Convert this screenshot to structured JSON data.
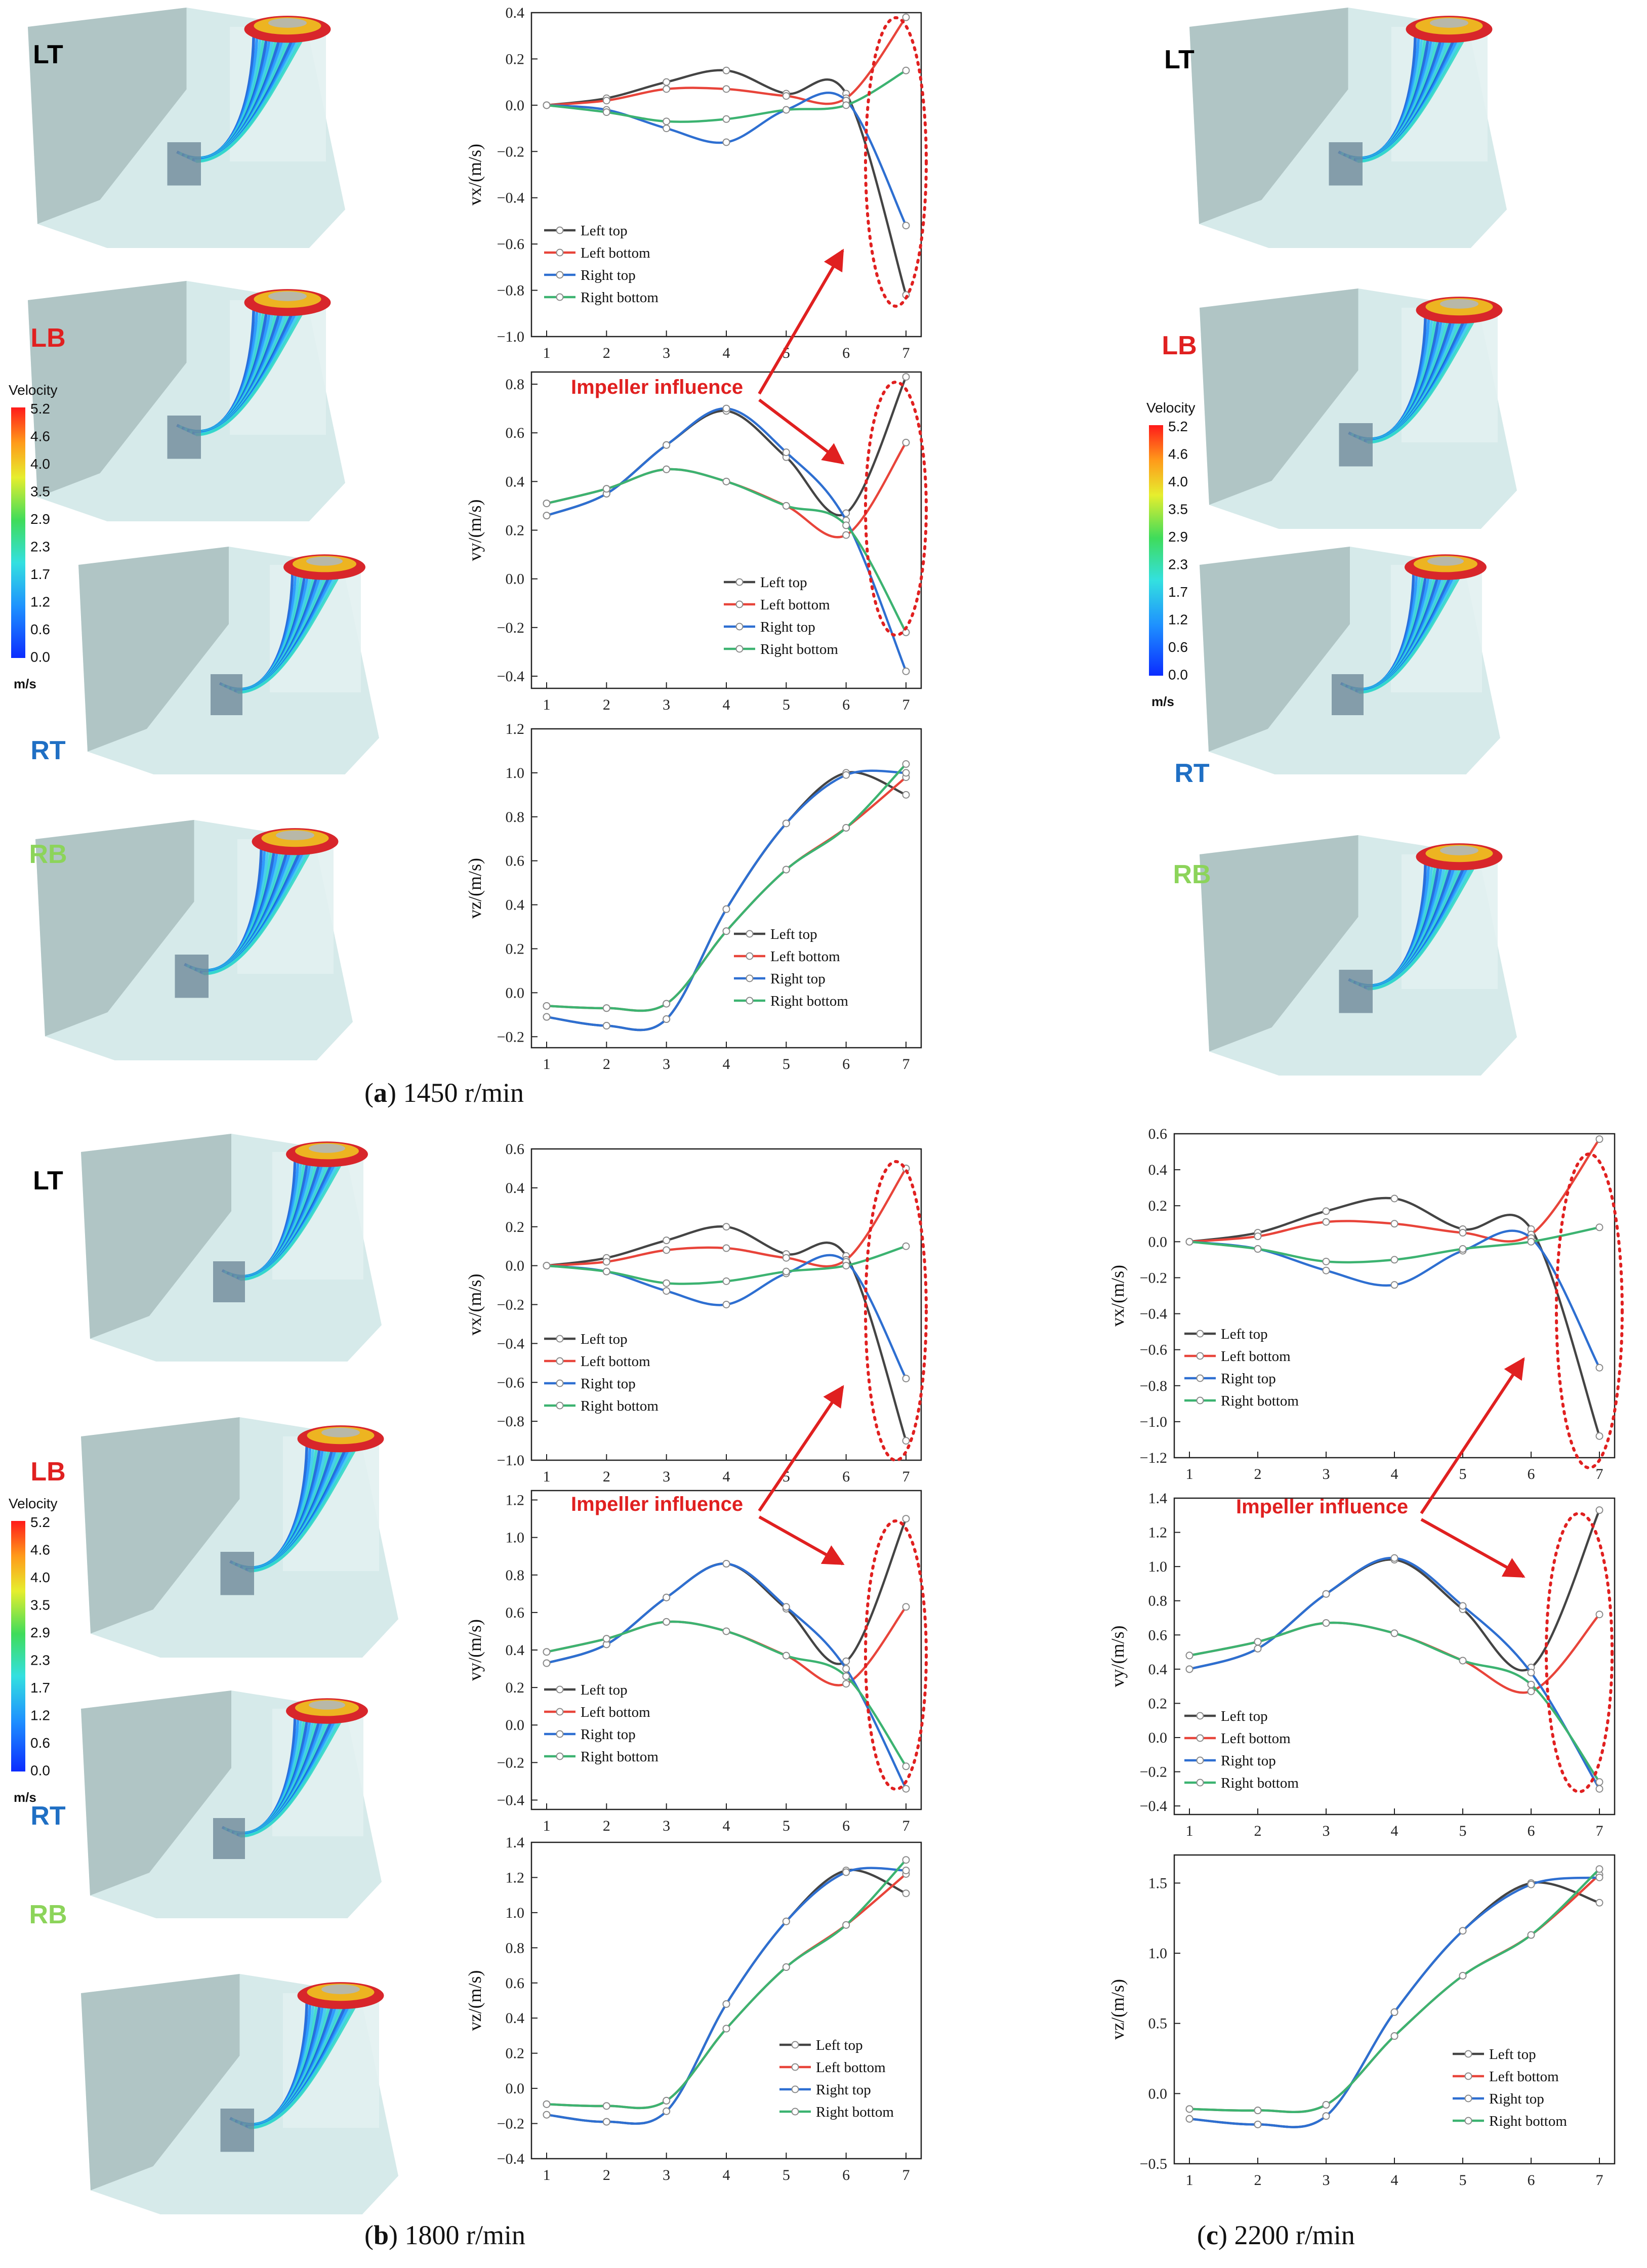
{
  "colors": {
    "series": [
      "#444444",
      "#e8443a",
      "#2e6fd1",
      "#3cb371"
    ],
    "annotation": "#e02020",
    "label_LT": "#000000",
    "label_LB": "#e02020",
    "label_RT": "#1f6fc4",
    "label_RB": "#8cd45a",
    "model_fill": "#cfe6e6",
    "model_dark": "#9fb5b5"
  },
  "labels": {
    "lt": "LT",
    "lb": "LB",
    "rt": "RT",
    "rb": "RB",
    "impeller": "Impeller influence",
    "velocity_title": "Velocity",
    "velocity_unit": "m/s",
    "velocity_ticks": [
      "5.2",
      "4.6",
      "4.0",
      "3.5",
      "2.9",
      "2.3",
      "1.7",
      "1.2",
      "0.6",
      "0.0"
    ]
  },
  "captions": {
    "a": {
      "letter": "a",
      "text": " 1450 r/min"
    },
    "b": {
      "letter": "b",
      "text": " 1800 r/min"
    },
    "c": {
      "letter": "c",
      "text": " 2200 r/min"
    }
  },
  "legend": [
    "Left top",
    "Left bottom",
    "Right top",
    "Right bottom"
  ],
  "chart_data": [
    {
      "id": "a_vx",
      "panel": "a",
      "type": "line",
      "ylabel": "vx/(m/s)",
      "xlabel": "",
      "x": [
        1,
        2,
        3,
        4,
        5,
        6,
        7
      ],
      "ylim": [
        -1.0,
        0.4
      ],
      "yticks": [
        -1.0,
        -0.8,
        -0.6,
        -0.4,
        -0.2,
        0.0,
        0.2,
        0.4
      ],
      "series": [
        {
          "name": "Left top",
          "values": [
            0.0,
            0.03,
            0.1,
            0.15,
            0.05,
            0.05,
            -0.82
          ]
        },
        {
          "name": "Left bottom",
          "values": [
            0.0,
            0.02,
            0.07,
            0.07,
            0.04,
            0.03,
            0.38
          ]
        },
        {
          "name": "Right top",
          "values": [
            0.0,
            -0.02,
            -0.1,
            -0.16,
            -0.02,
            0.02,
            -0.52
          ]
        },
        {
          "name": "Right bottom",
          "values": [
            0.0,
            -0.03,
            -0.07,
            -0.06,
            -0.02,
            0.0,
            0.15
          ]
        }
      ]
    },
    {
      "id": "a_vy",
      "panel": "a",
      "type": "line",
      "ylabel": "vy/(m/s)",
      "xlabel": "",
      "x": [
        1,
        2,
        3,
        4,
        5,
        6,
        7
      ],
      "ylim": [
        -0.45,
        0.85
      ],
      "yticks": [
        -0.4,
        -0.2,
        0.0,
        0.2,
        0.4,
        0.6,
        0.8
      ],
      "series": [
        {
          "name": "Left top",
          "values": [
            0.26,
            0.35,
            0.55,
            0.69,
            0.5,
            0.27,
            0.83
          ]
        },
        {
          "name": "Left bottom",
          "values": [
            0.31,
            0.37,
            0.45,
            0.4,
            0.3,
            0.18,
            0.56
          ]
        },
        {
          "name": "Right top",
          "values": [
            0.26,
            0.35,
            0.55,
            0.7,
            0.52,
            0.24,
            -0.38
          ]
        },
        {
          "name": "Right bottom",
          "values": [
            0.31,
            0.37,
            0.45,
            0.4,
            0.3,
            0.22,
            -0.22
          ]
        }
      ]
    },
    {
      "id": "a_vz",
      "panel": "a",
      "type": "line",
      "ylabel": "vz/(m/s)",
      "xlabel": "",
      "x": [
        1,
        2,
        3,
        4,
        5,
        6,
        7
      ],
      "ylim": [
        -0.25,
        1.2
      ],
      "yticks": [
        -0.2,
        0.0,
        0.2,
        0.4,
        0.6,
        0.8,
        1.0,
        1.2
      ],
      "series": [
        {
          "name": "Left top",
          "values": [
            -0.11,
            -0.15,
            -0.12,
            0.38,
            0.77,
            1.0,
            0.9
          ]
        },
        {
          "name": "Left bottom",
          "values": [
            -0.06,
            -0.07,
            -0.05,
            0.28,
            0.56,
            0.75,
            0.98
          ]
        },
        {
          "name": "Right top",
          "values": [
            -0.11,
            -0.15,
            -0.12,
            0.38,
            0.77,
            0.99,
            1.0
          ]
        },
        {
          "name": "Right bottom",
          "values": [
            -0.06,
            -0.07,
            -0.05,
            0.28,
            0.56,
            0.75,
            1.04
          ]
        }
      ]
    },
    {
      "id": "b_vx",
      "panel": "b",
      "type": "line",
      "ylabel": "vx/(m/s)",
      "xlabel": "",
      "x": [
        1,
        2,
        3,
        4,
        5,
        6,
        7
      ],
      "ylim": [
        -1.0,
        0.6
      ],
      "yticks": [
        -1.0,
        -0.8,
        -0.6,
        -0.4,
        -0.2,
        0.0,
        0.2,
        0.4,
        0.6
      ],
      "series": [
        {
          "name": "Left top",
          "values": [
            0.0,
            0.04,
            0.13,
            0.2,
            0.06,
            0.05,
            -0.9
          ]
        },
        {
          "name": "Left bottom",
          "values": [
            0.0,
            0.02,
            0.08,
            0.09,
            0.04,
            0.03,
            0.5
          ]
        },
        {
          "name": "Right top",
          "values": [
            0.0,
            -0.03,
            -0.13,
            -0.2,
            -0.04,
            0.02,
            -0.58
          ]
        },
        {
          "name": "Right bottom",
          "values": [
            0.0,
            -0.03,
            -0.09,
            -0.08,
            -0.03,
            0.0,
            0.1
          ]
        }
      ]
    },
    {
      "id": "b_vy",
      "panel": "b",
      "type": "line",
      "ylabel": "vy/(m/s)",
      "xlabel": "",
      "x": [
        1,
        2,
        3,
        4,
        5,
        6,
        7
      ],
      "ylim": [
        -0.45,
        1.25
      ],
      "yticks": [
        -0.4,
        -0.2,
        0.0,
        0.2,
        0.4,
        0.6,
        0.8,
        1.0,
        1.2
      ],
      "series": [
        {
          "name": "Left top",
          "values": [
            0.33,
            0.43,
            0.68,
            0.86,
            0.62,
            0.34,
            1.1
          ]
        },
        {
          "name": "Left bottom",
          "values": [
            0.39,
            0.46,
            0.55,
            0.5,
            0.37,
            0.22,
            0.63
          ]
        },
        {
          "name": "Right top",
          "values": [
            0.33,
            0.43,
            0.68,
            0.86,
            0.63,
            0.3,
            -0.34
          ]
        },
        {
          "name": "Right bottom",
          "values": [
            0.39,
            0.46,
            0.55,
            0.5,
            0.37,
            0.26,
            -0.22
          ]
        }
      ]
    },
    {
      "id": "b_vz",
      "panel": "b",
      "type": "line",
      "ylabel": "vz/(m/s)",
      "xlabel": "",
      "x": [
        1,
        2,
        3,
        4,
        5,
        6,
        7
      ],
      "ylim": [
        -0.4,
        1.4
      ],
      "yticks": [
        -0.4,
        -0.2,
        0.0,
        0.2,
        0.4,
        0.6,
        0.8,
        1.0,
        1.2,
        1.4
      ],
      "series": [
        {
          "name": "Left top",
          "values": [
            -0.15,
            -0.19,
            -0.13,
            0.48,
            0.95,
            1.24,
            1.11
          ]
        },
        {
          "name": "Left bottom",
          "values": [
            -0.09,
            -0.1,
            -0.07,
            0.34,
            0.69,
            0.93,
            1.22
          ]
        },
        {
          "name": "Right top",
          "values": [
            -0.15,
            -0.19,
            -0.13,
            0.48,
            0.95,
            1.23,
            1.24
          ]
        },
        {
          "name": "Right bottom",
          "values": [
            -0.09,
            -0.1,
            -0.07,
            0.34,
            0.69,
            0.93,
            1.3
          ]
        }
      ]
    },
    {
      "id": "c_vx",
      "panel": "c",
      "type": "line",
      "ylabel": "vx/(m/s)",
      "xlabel": "",
      "x": [
        1,
        2,
        3,
        4,
        5,
        6,
        7
      ],
      "ylim": [
        -1.2,
        0.6
      ],
      "yticks": [
        -1.2,
        -1.0,
        -0.8,
        -0.6,
        -0.4,
        -0.2,
        0.0,
        0.2,
        0.4,
        0.6
      ],
      "series": [
        {
          "name": "Left top",
          "values": [
            0.0,
            0.05,
            0.17,
            0.24,
            0.07,
            0.07,
            -1.08
          ]
        },
        {
          "name": "Left bottom",
          "values": [
            0.0,
            0.03,
            0.11,
            0.1,
            0.05,
            0.04,
            0.57
          ]
        },
        {
          "name": "Right top",
          "values": [
            0.0,
            -0.04,
            -0.16,
            -0.24,
            -0.05,
            0.02,
            -0.7
          ]
        },
        {
          "name": "Right bottom",
          "values": [
            0.0,
            -0.04,
            -0.11,
            -0.1,
            -0.04,
            0.0,
            0.08
          ]
        }
      ]
    },
    {
      "id": "c_vy",
      "panel": "c",
      "type": "line",
      "ylabel": "vy/(m/s)",
      "xlabel": "",
      "x": [
        1,
        2,
        3,
        4,
        5,
        6,
        7
      ],
      "ylim": [
        -0.45,
        1.4
      ],
      "yticks": [
        -0.4,
        -0.2,
        0.0,
        0.2,
        0.4,
        0.6,
        0.8,
        1.0,
        1.2,
        1.4
      ],
      "series": [
        {
          "name": "Left top",
          "values": [
            0.4,
            0.52,
            0.84,
            1.04,
            0.75,
            0.41,
            1.33
          ]
        },
        {
          "name": "Left bottom",
          "values": [
            0.48,
            0.56,
            0.67,
            0.61,
            0.45,
            0.27,
            0.72
          ]
        },
        {
          "name": "Right top",
          "values": [
            0.4,
            0.52,
            0.84,
            1.05,
            0.77,
            0.38,
            -0.3
          ]
        },
        {
          "name": "Right bottom",
          "values": [
            0.48,
            0.56,
            0.67,
            0.61,
            0.45,
            0.31,
            -0.26
          ]
        }
      ]
    },
    {
      "id": "c_vz",
      "panel": "c",
      "type": "line",
      "ylabel": "vz/(m/s)",
      "xlabel": "",
      "x": [
        1,
        2,
        3,
        4,
        5,
        6,
        7
      ],
      "ylim": [
        -0.5,
        1.7
      ],
      "yticks": [
        -0.5,
        0.0,
        0.5,
        1.0,
        1.5
      ],
      "series": [
        {
          "name": "Left top",
          "values": [
            -0.18,
            -0.22,
            -0.16,
            0.58,
            1.16,
            1.5,
            1.36
          ]
        },
        {
          "name": "Left bottom",
          "values": [
            -0.11,
            -0.12,
            -0.08,
            0.41,
            0.84,
            1.13,
            1.56
          ]
        },
        {
          "name": "Right top",
          "values": [
            -0.18,
            -0.22,
            -0.16,
            0.58,
            1.16,
            1.49,
            1.54
          ]
        },
        {
          "name": "Right bottom",
          "values": [
            -0.11,
            -0.12,
            -0.08,
            0.41,
            0.84,
            1.13,
            1.6
          ]
        }
      ]
    }
  ]
}
